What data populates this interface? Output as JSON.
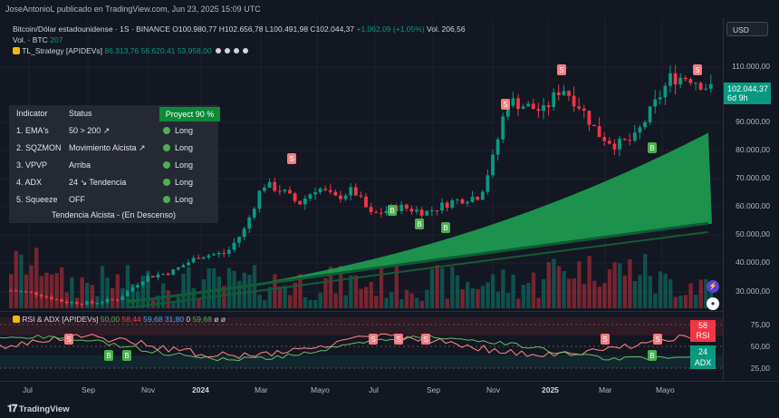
{
  "publisher": "JoseAntonioL publicado en TradingView.com, Jun 23, 2025 15:09 UTC",
  "header": {
    "symbol": "Bitcoin/Dólar estadounidense · 1S · BINANCE",
    "ohlc": "O100.980,77 H102.656,78 L100.491,98 C102.044,37",
    "change": "+1.062,09 (+1,05%)",
    "volume": "Vol. 206,56",
    "vol_line": "Vol. · BTC",
    "vol_value": "207",
    "strategy_name": "TL_Strategy [APIDEVs]",
    "strategy_values": "86.313,76  56.620,41  53.958,00"
  },
  "indicator_table": {
    "col_indicator": "Indicator",
    "col_status": "Status",
    "proyect": "Proyect 90 %",
    "rows": [
      {
        "name": "1. EMA's",
        "status": "50 > 200 ↗",
        "signal": "Long"
      },
      {
        "name": "2. SQZMON",
        "status": "Movimiento Alcista ↗",
        "signal": "Long"
      },
      {
        "name": "3. VPVP",
        "status": "Arriba",
        "signal": "Long"
      },
      {
        "name": "4. ADX",
        "status": "24 ↘ Tendencia",
        "signal": "Long"
      },
      {
        "name": "5. Squeeze",
        "status": "OFF",
        "signal": "Long"
      }
    ],
    "trend": "Tendencia Alcista - (En Descenso)"
  },
  "price_axis": {
    "currency": "USD",
    "labels": [
      "110.000,00",
      "90.000,00",
      "80.000,00",
      "70.000,00",
      "60.000,00",
      "50.000,00",
      "40.000,00",
      "30.000,00"
    ],
    "current_price": "102.044,37",
    "countdown": "6d 9h"
  },
  "rsi_pane": {
    "label": "RSI & ADX [APIDEVs]",
    "values": [
      "50,00",
      "58,44",
      "59,68",
      "31,80",
      "0",
      "59,68",
      "ø",
      "ø"
    ],
    "axis_labels": [
      "75,00",
      "50,00",
      "25,00"
    ],
    "rsi_value": "58",
    "rsi_name": "RSI",
    "adx_value": "24",
    "adx_name": "ADX"
  },
  "time_axis": [
    "Jul",
    "Sep",
    "Nov",
    "2024",
    "Mar",
    "Mayo",
    "Jul",
    "Sep",
    "Nov",
    "2025",
    "Mar",
    "Mayo"
  ],
  "brand": "TradingView",
  "colors": {
    "up": "#089981",
    "down": "#f23645",
    "fill": "#1fa855",
    "ribbon": "#0e7a3c",
    "accent": "#2962ff"
  },
  "chart_data": {
    "type": "candlestick",
    "title": "Bitcoin/Dólar estadounidense · 1S · BINANCE",
    "x": [
      "Jul 2023",
      "Sep 2023",
      "Nov 2023",
      "2024",
      "Mar 2024",
      "Mayo 2024",
      "Jul 2024",
      "Sep 2024",
      "Nov 2024",
      "2025",
      "Mar 2025",
      "Mayo 2025"
    ],
    "close_approx": [
      30000,
      27000,
      37000,
      43000,
      68000,
      67000,
      58000,
      63000,
      97000,
      98000,
      84000,
      102044
    ],
    "band_upper_last": 86313.76,
    "band_mid_last": 56620.41,
    "band_lower_last": 53958.0,
    "ylim": [
      25000,
      120000
    ]
  }
}
